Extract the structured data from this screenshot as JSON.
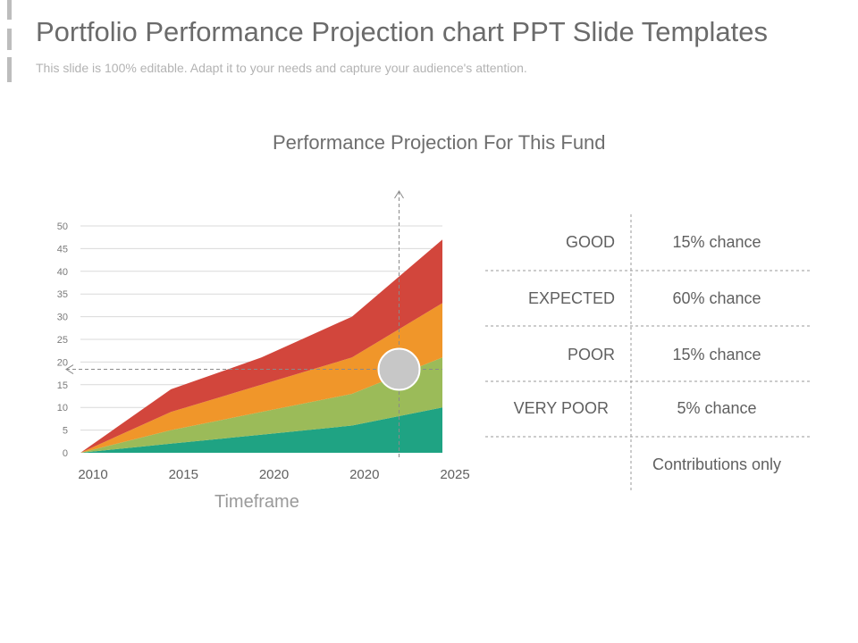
{
  "slide": {
    "title": "Portfolio Performance Projection chart PPT Slide Templates",
    "subtitle": "This slide is 100% editable. Adapt it to your needs and capture your audience's attention."
  },
  "chart_data": {
    "type": "area",
    "stacked": true,
    "title": "Performance Projection For This Fund",
    "xlabel": "Timeframe",
    "ylabel": "",
    "categories": [
      "2010",
      "2015",
      "2020",
      "2020",
      "2025"
    ],
    "ylim": [
      0,
      50
    ],
    "yticks": [
      0,
      5,
      10,
      15,
      20,
      25,
      30,
      35,
      40,
      45,
      50
    ],
    "grid": true,
    "series": [
      {
        "name": "Contributions only",
        "color": "#1fa383",
        "values": [
          0,
          2,
          4,
          6,
          10
        ]
      },
      {
        "name": "Very Poor",
        "color": "#9bbb59",
        "values": [
          0,
          3,
          5,
          7,
          11
        ]
      },
      {
        "name": "Poor",
        "color": "#f0962a",
        "values": [
          0,
          4,
          6,
          8,
          12
        ]
      },
      {
        "name": "Good",
        "color": "#d2463c",
        "values": [
          0,
          5,
          6,
          9,
          14
        ]
      }
    ],
    "marker": {
      "value": 18,
      "category_position": 3.6,
      "color": "#c7c7c7"
    },
    "horizontal_guide_value": 18,
    "vertical_guide_position": 3.6
  },
  "outcomes": [
    {
      "label": "GOOD",
      "chance": "15% chance"
    },
    {
      "label": "EXPECTED",
      "chance": "60% chance"
    },
    {
      "label": "POOR",
      "chance": "15% chance"
    },
    {
      "label": "VERY POOR",
      "chance": "5% chance"
    },
    {
      "label": "",
      "chance": "Contributions only"
    }
  ]
}
